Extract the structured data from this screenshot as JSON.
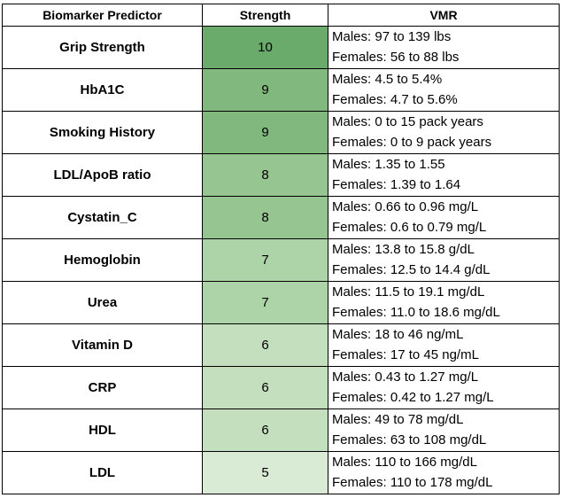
{
  "headers": {
    "predictor": "Biomarker Predictor",
    "strength": "Strength",
    "vmr": "VMR"
  },
  "rows": [
    {
      "name": "Grip Strength",
      "strength": "10",
      "males": "Males: 97 to 139 lbs",
      "females": "Females: 56 to 88 lbs",
      "color": "#6aaa6a"
    },
    {
      "name": "HbA1C",
      "strength": "9",
      "males": "Males: 4.5 to 5.4%",
      "females": "Females: 4.7 to 5.6%",
      "color": "#80b87e"
    },
    {
      "name": "Smoking History",
      "strength": "9",
      "males": "Males: 0 to 15 pack years",
      "females": "Females: 0 to 9 pack years",
      "color": "#80b87e"
    },
    {
      "name": "LDL/ApoB ratio",
      "strength": "8",
      "males": "Males: 1.35 to 1.55",
      "females": "Females: 1.39 to 1.64",
      "color": "#97c592"
    },
    {
      "name": "Cystatin_C",
      "strength": "8",
      "males": "Males: 0.66 to 0.96 mg/L",
      "females": "Females: 0.6 to 0.79 mg/L",
      "color": "#97c592"
    },
    {
      "name": "Hemoglobin",
      "strength": "7",
      "males": "Males: 13.8 to 15.8 g/dL",
      "females": "Females: 12.5 to 14.4 g/dL",
      "color": "#add3a8"
    },
    {
      "name": "Urea",
      "strength": "7",
      "males": "Males: 11.5 to 19.1 mg/dL",
      "females": "Females: 11.0 to 18.6 mg/dL",
      "color": "#add3a8"
    },
    {
      "name": "Vitamin D",
      "strength": "6",
      "males": "Males: 18 to 46 ng/mL",
      "females": "Females: 17 to 45 ng/mL",
      "color": "#c3dfbe"
    },
    {
      "name": "CRP",
      "strength": "6",
      "males": "Males: 0.43 to 1.27 mg/L",
      "females": "Females: 0.42 to 1.27 mg/L",
      "color": "#c3dfbe"
    },
    {
      "name": "HDL",
      "strength": "6",
      "males": "Males: 49 to 78 mg/dL",
      "females": "Females: 63 to 108 mg/dL",
      "color": "#c3dfbe"
    },
    {
      "name": "LDL",
      "strength": "5",
      "males": "Males: 110 to 166 mg/dL",
      "females": "Females: 110 to 178 mg/dL",
      "color": "#d9ebd4"
    }
  ]
}
